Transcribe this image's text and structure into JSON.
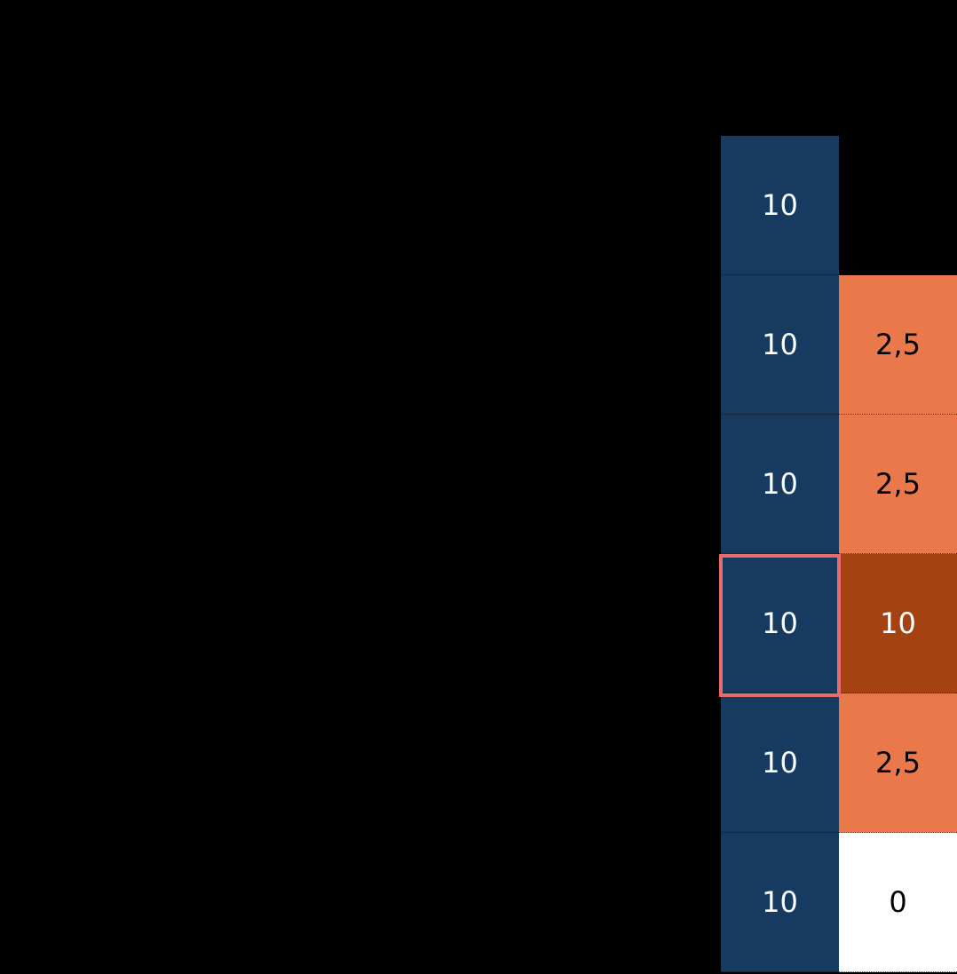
{
  "colors": {
    "background": "#000000",
    "blue": "#173a61",
    "orange": "#e9784a",
    "dark_orange": "#a44212",
    "white": "#ffffff",
    "highlight_border": "#ea6b6b"
  },
  "columns": [
    {
      "name": "column-a",
      "cells": [
        {
          "value": "10",
          "fill": "blue"
        },
        {
          "value": "10",
          "fill": "blue"
        },
        {
          "value": "10",
          "fill": "blue"
        },
        {
          "value": "10",
          "fill": "blue",
          "highlighted": true
        },
        {
          "value": "10",
          "fill": "blue"
        },
        {
          "value": "10",
          "fill": "blue"
        }
      ]
    },
    {
      "name": "column-b",
      "cells": [
        {
          "value": "",
          "fill": "background"
        },
        {
          "value": "2,5",
          "fill": "orange"
        },
        {
          "value": "2,5",
          "fill": "orange"
        },
        {
          "value": "10",
          "fill": "dark_orange"
        },
        {
          "value": "2,5",
          "fill": "orange"
        },
        {
          "value": "0",
          "fill": "white"
        }
      ]
    }
  ]
}
